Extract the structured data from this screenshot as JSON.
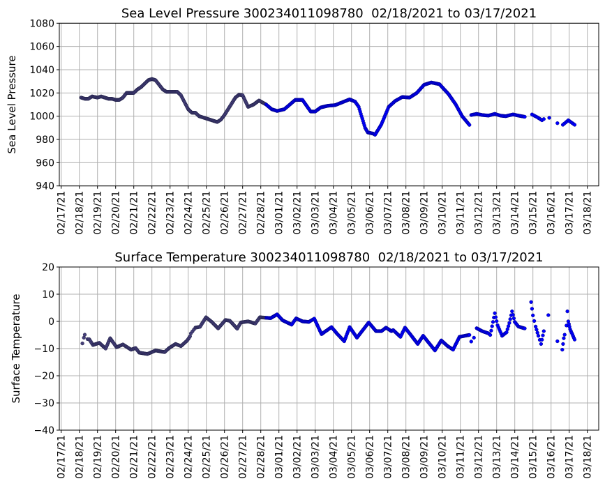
{
  "chart_data": [
    {
      "type": "scatter",
      "title": "Sea Level Pressure 300234011098780  02/18/2021 to 03/17/2021",
      "xlabel": "",
      "ylabel": "Sea Level Pressure",
      "ylim": [
        940,
        1080
      ],
      "yticks": [
        940,
        960,
        980,
        1000,
        1020,
        1040,
        1060,
        1080
      ],
      "x_unit": "days since 02/17/21",
      "xlim": [
        -0.1,
        29.5
      ],
      "xticks": [
        "02/17/21",
        "02/18/21",
        "02/19/21",
        "02/20/21",
        "02/21/21",
        "02/22/21",
        "02/23/21",
        "02/24/21",
        "02/25/21",
        "02/26/21",
        "02/27/21",
        "02/28/21",
        "03/01/21",
        "03/02/21",
        "03/03/21",
        "03/04/21",
        "03/05/21",
        "03/06/21",
        "03/07/21",
        "03/08/21",
        "03/09/21",
        "03/10/21",
        "03/11/21",
        "03/12/21",
        "03/13/21",
        "03/14/21",
        "03/15/21",
        "03/16/21",
        "03/17/21",
        "03/18/21"
      ],
      "grid": true,
      "colors": {
        "dense": "#46407a",
        "normal": "#0000ff",
        "edge": "#1a1a40"
      },
      "segments": [
        {
          "step": 0.04,
          "points": [
            [
              1.1,
              1016
            ],
            [
              1.3,
              1015
            ],
            [
              1.5,
              1015
            ],
            [
              1.7,
              1017
            ],
            [
              2.0,
              1016
            ],
            [
              2.2,
              1017
            ],
            [
              2.4,
              1016
            ],
            [
              2.6,
              1015
            ],
            [
              2.8,
              1015
            ],
            [
              3.0,
              1014
            ],
            [
              3.2,
              1014
            ],
            [
              3.4,
              1016
            ],
            [
              3.6,
              1020
            ],
            [
              4.0,
              1020
            ],
            [
              4.2,
              1023
            ],
            [
              4.4,
              1025
            ],
            [
              4.6,
              1028
            ],
            [
              4.8,
              1031
            ],
            [
              5.0,
              1032
            ],
            [
              5.2,
              1031
            ],
            [
              5.4,
              1027
            ],
            [
              5.6,
              1023
            ],
            [
              5.8,
              1021
            ],
            [
              6.2,
              1021
            ],
            [
              6.4,
              1021
            ],
            [
              6.6,
              1018
            ],
            [
              6.8,
              1012
            ],
            [
              7.0,
              1006
            ],
            [
              7.2,
              1003
            ],
            [
              7.4,
              1003
            ],
            [
              7.6,
              1000
            ],
            [
              7.8,
              999
            ],
            [
              8.0,
              998
            ],
            [
              8.2,
              997
            ],
            [
              8.4,
              996
            ],
            [
              8.6,
              995
            ],
            [
              8.8,
              997
            ],
            [
              9.0,
              1001
            ],
            [
              9.2,
              1006
            ],
            [
              9.4,
              1011
            ],
            [
              9.6,
              1016
            ],
            [
              9.8,
              1018.5
            ],
            [
              10.0,
              1018
            ],
            [
              10.3,
              1008
            ],
            [
              10.6,
              1010
            ],
            [
              10.9,
              1013.5
            ],
            [
              11.3,
              1010
            ],
            [
              11.6,
              1006
            ],
            [
              11.9,
              1004.5
            ],
            [
              12.3,
              1006
            ],
            [
              12.6,
              1010
            ],
            [
              12.9,
              1014
            ],
            [
              13.3,
              1014
            ],
            [
              13.75,
              1004
            ],
            [
              14.0,
              1004
            ],
            [
              14.3,
              1007.5
            ],
            [
              14.7,
              1009
            ],
            [
              15.1,
              1009.5
            ],
            [
              15.5,
              1012
            ],
            [
              15.9,
              1014.5
            ],
            [
              16.2,
              1012.5
            ],
            [
              16.4,
              1008
            ],
            [
              16.75,
              990
            ],
            [
              16.9,
              986
            ],
            [
              17.2,
              985
            ],
            [
              17.3,
              984
            ],
            [
              17.65,
              993
            ],
            [
              18.05,
              1008
            ],
            [
              18.4,
              1013
            ],
            [
              18.8,
              1016.5
            ],
            [
              19.2,
              1016
            ],
            [
              19.6,
              1020
            ],
            [
              20.0,
              1027
            ],
            [
              20.4,
              1029
            ],
            [
              20.85,
              1027.5
            ],
            [
              21.35,
              1019
            ],
            [
              21.75,
              1010
            ],
            [
              22.1,
              1000
            ],
            [
              22.5,
              992.5
            ]
          ]
        },
        {
          "step": 0.05,
          "points": [
            [
              22.6,
              1001
            ],
            [
              22.9,
              1002
            ],
            [
              23.2,
              1001
            ],
            [
              23.55,
              1000.5
            ],
            [
              23.9,
              1002
            ],
            [
              24.2,
              1000.5
            ],
            [
              24.5,
              1000
            ],
            [
              24.9,
              1001.5
            ],
            [
              25.2,
              1000.5
            ],
            [
              25.55,
              999.5
            ]
          ]
        },
        {
          "step": 0.07,
          "points": [
            [
              25.95,
              1001.5
            ],
            [
              26.25,
              999
            ],
            [
              26.5,
              996.5
            ],
            [
              26.6,
              997.5
            ]
          ]
        },
        {
          "step": 1,
          "points": [
            [
              26.9,
              998.6
            ]
          ]
        },
        {
          "step": 1,
          "points": [
            [
              27.35,
              994
            ]
          ]
        },
        {
          "step": 0.07,
          "points": [
            [
              27.65,
              992.6
            ],
            [
              27.95,
              996.5
            ],
            [
              28.3,
              992.6
            ]
          ]
        }
      ]
    },
    {
      "type": "scatter",
      "title": "Surface Temperature 300234011098780  02/18/2021 to 03/17/2021",
      "xlabel": "",
      "ylabel": "Surface Temperature",
      "ylim": [
        -40,
        20
      ],
      "yticks": [
        -40,
        -30,
        -20,
        -10,
        0,
        10,
        20
      ],
      "x_unit": "days since 02/17/21",
      "xlim": [
        -0.1,
        29.5
      ],
      "xticks": [
        "02/17/21",
        "02/18/21",
        "02/19/21",
        "02/20/21",
        "02/21/21",
        "02/22/21",
        "02/23/21",
        "02/24/21",
        "02/25/21",
        "02/26/21",
        "02/27/21",
        "02/28/21",
        "03/01/21",
        "03/02/21",
        "03/03/21",
        "03/04/21",
        "03/05/21",
        "03/06/21",
        "03/07/21",
        "03/08/21",
        "03/09/21",
        "03/10/21",
        "03/11/21",
        "03/12/21",
        "03/13/21",
        "03/14/21",
        "03/15/21",
        "03/16/21",
        "03/17/21",
        "03/18/21"
      ],
      "grid": true,
      "colors": {
        "dense": "#46407a",
        "normal": "#0000ff",
        "edge": "#1a1a40"
      },
      "segments": [
        {
          "step": 1,
          "points": [
            [
              1.17,
              -8.1
            ]
          ]
        },
        {
          "step": 0.1,
          "points": [
            [
              1.25,
              -6
            ],
            [
              1.3,
              -4.9
            ],
            [
              1.45,
              -6.5
            ]
          ]
        },
        {
          "step": 0.04,
          "points": [
            [
              1.55,
              -6.6
            ],
            [
              1.75,
              -8.7
            ],
            [
              2.1,
              -7.9
            ],
            [
              2.45,
              -10
            ],
            [
              2.7,
              -6.2
            ],
            [
              3.05,
              -9.5
            ],
            [
              3.4,
              -8.5
            ],
            [
              3.85,
              -10.4
            ],
            [
              4.1,
              -9.8
            ],
            [
              4.3,
              -11.5
            ],
            [
              4.75,
              -12
            ],
            [
              5.2,
              -10.7
            ],
            [
              5.7,
              -11.3
            ],
            [
              5.95,
              -9.8
            ],
            [
              6.3,
              -8.3
            ],
            [
              6.6,
              -9.1
            ],
            [
              6.95,
              -7
            ],
            [
              7.1,
              -5.5
            ]
          ]
        },
        {
          "step": 0.09,
          "points": [
            [
              7.15,
              -4.4
            ],
            [
              7.4,
              -2.3
            ]
          ]
        },
        {
          "step": 0.04,
          "points": [
            [
              7.4,
              -2.3
            ],
            [
              7.65,
              -2
            ],
            [
              7.98,
              1.5
            ],
            [
              8.3,
              -0.2
            ],
            [
              8.65,
              -2.6
            ],
            [
              9.05,
              0.5
            ],
            [
              9.3,
              0.2
            ],
            [
              9.7,
              -2.7
            ],
            [
              9.9,
              -0.4
            ],
            [
              10.3,
              0
            ],
            [
              10.7,
              -0.8
            ],
            [
              10.95,
              1.5
            ],
            [
              11.55,
              1.2
            ],
            [
              11.9,
              2.6
            ],
            [
              12.2,
              0.4
            ],
            [
              12.7,
              -1.2
            ],
            [
              12.95,
              1.1
            ],
            [
              13.3,
              0
            ],
            [
              13.65,
              -0.2
            ],
            [
              13.95,
              1
            ],
            [
              14.35,
              -4.7
            ],
            [
              14.6,
              -3.5
            ],
            [
              14.9,
              -2.1
            ],
            [
              15.2,
              -4.5
            ],
            [
              15.6,
              -7.3
            ],
            [
              15.9,
              -2.1
            ],
            [
              16.3,
              -6
            ],
            [
              16.95,
              -0.4
            ],
            [
              17.35,
              -3.6
            ],
            [
              17.65,
              -3.6
            ],
            [
              17.9,
              -2.3
            ],
            [
              18.2,
              -3.6
            ],
            [
              18.3,
              -3.2
            ],
            [
              18.7,
              -5.7
            ],
            [
              18.95,
              -2.3
            ],
            [
              19.2,
              -4.4
            ],
            [
              19.65,
              -8.3
            ],
            [
              19.95,
              -5.3
            ],
            [
              20.6,
              -10.7
            ],
            [
              20.95,
              -7
            ],
            [
              21.3,
              -9.1
            ],
            [
              21.6,
              -10.4
            ],
            [
              21.95,
              -5.7
            ],
            [
              22.4,
              -5.1
            ],
            [
              22.5,
              -5
            ]
          ]
        },
        {
          "step": 1,
          "points": [
            [
              22.6,
              -7.4
            ]
          ]
        },
        {
          "step": 1,
          "points": [
            [
              22.75,
              -6
            ]
          ]
        },
        {
          "step": 0.05,
          "points": [
            [
              22.9,
              -2.5
            ],
            [
              23.2,
              -3.6
            ],
            [
              23.55,
              -4.4
            ],
            [
              23.65,
              -5
            ],
            [
              23.75,
              -1.8
            ],
            [
              23.9,
              3
            ],
            [
              24.05,
              -1.4
            ],
            [
              24.3,
              -5.3
            ],
            [
              24.55,
              -4
            ],
            [
              24.7,
              -0.6
            ],
            [
              24.85,
              3.7
            ],
            [
              25.0,
              -0.2
            ],
            [
              25.2,
              -1.9
            ],
            [
              25.55,
              -2.6
            ]
          ]
        },
        {
          "step": 0.06,
          "points": [
            [
              25.9,
              7.1
            ],
            [
              26.0,
              2.2
            ],
            [
              26.15,
              -1.9
            ],
            [
              26.3,
              -5.3
            ],
            [
              26.45,
              -8.3
            ],
            [
              26.6,
              -3.6
            ]
          ]
        },
        {
          "step": 1,
          "points": [
            [
              26.85,
              2.3
            ]
          ]
        },
        {
          "step": 1,
          "points": [
            [
              27.35,
              -7.3
            ]
          ]
        },
        {
          "step": 0.05,
          "points": [
            [
              27.62,
              -10.4
            ],
            [
              27.7,
              -6.2
            ],
            [
              27.75,
              -4.9
            ]
          ]
        },
        {
          "step": 0.04,
          "points": [
            [
              27.85,
              -1.5
            ],
            [
              27.9,
              3.7
            ],
            [
              27.95,
              0
            ],
            [
              28.05,
              -2.9
            ],
            [
              28.3,
              -6.7
            ]
          ]
        }
      ]
    }
  ]
}
